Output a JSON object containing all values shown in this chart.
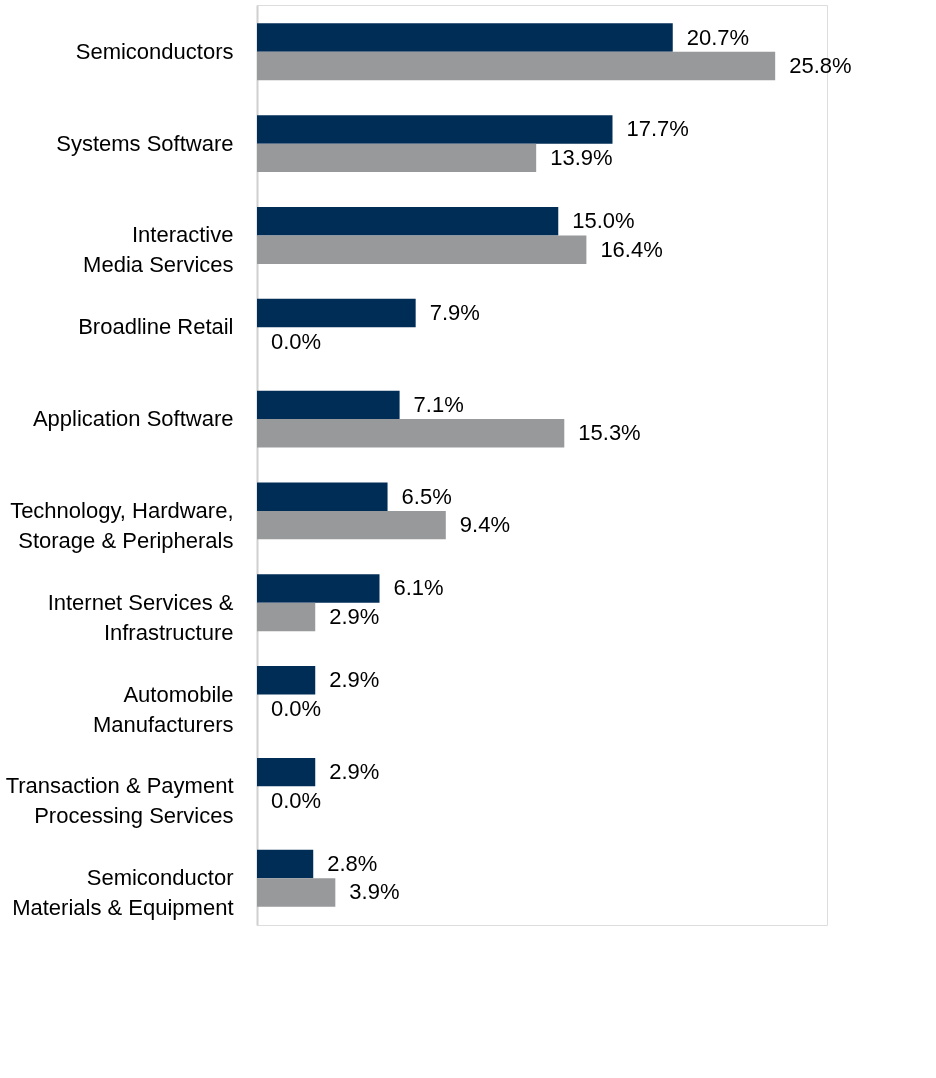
{
  "chart_data": {
    "type": "bar",
    "orientation": "horizontal",
    "legend": false,
    "categories": [
      "Semiconductors",
      "Systems Software",
      "Interactive\nMedia Services",
      "Broadline Retail",
      "Application Software",
      "Technology, Hardware,\nStorage & Peripherals",
      "Internet Services &\nInfrastructure",
      "Automobile\nManufacturers",
      "Transaction & Payment\nProcessing Services",
      "Semiconductor\nMaterials & Equipment"
    ],
    "series": [
      {
        "color": "#002d56",
        "values": [
          20.7,
          17.7,
          15.0,
          7.9,
          7.1,
          6.5,
          6.1,
          2.9,
          2.9,
          2.8
        ],
        "value_labels": [
          "20.7%",
          "17.7%",
          "15.0%",
          "7.9%",
          "7.1%",
          "6.5%",
          "6.1%",
          "2.9%",
          "2.9%",
          "2.8%"
        ]
      },
      {
        "color": "#98999b",
        "values": [
          25.8,
          13.9,
          16.4,
          0.0,
          15.3,
          9.4,
          2.9,
          0.0,
          0.0,
          3.9
        ],
        "value_labels": [
          "25.8%",
          "13.9%",
          "16.4%",
          "0.0%",
          "15.3%",
          "9.4%",
          "2.9%",
          "0.0%",
          "0.0%",
          "3.9%"
        ]
      }
    ]
  }
}
